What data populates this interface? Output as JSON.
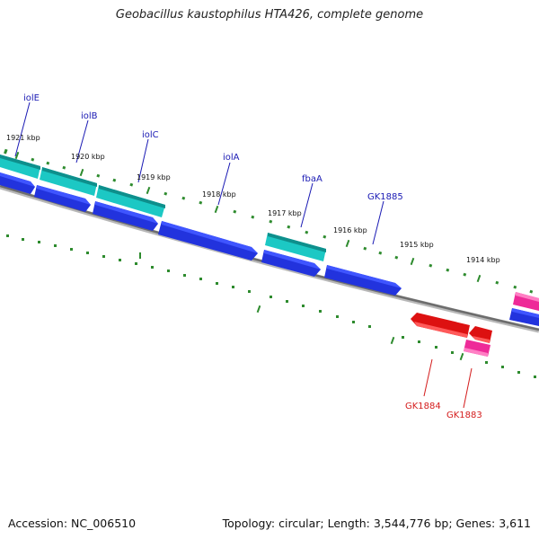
{
  "title": "Geobacillus kaustophilus HTA426, complete genome",
  "footer": {
    "accession": "Accession: NC_006510",
    "summary": "Topology: circular; Length: 3,544,776 bp; Genes: 3,611"
  },
  "colors": {
    "forward_gene": "#2233dd",
    "forward_rna": "#1cc8c4",
    "reverse_gene": "#dd1111",
    "reverse_rna": "#ee2a98",
    "backbone": "#7a7a7a",
    "tick": "#2e8b2e"
  },
  "kbp_labels": [
    "1921 kbp",
    "1920 kbp",
    "1919 kbp",
    "1918 kbp",
    "1917 kbp",
    "1916 kbp",
    "1915 kbp",
    "1914 kbp"
  ],
  "gene_labels": {
    "iolE": "iolE",
    "iolB": "iolB",
    "iolC": "iolC",
    "iolA": "iolA",
    "fbaA": "fbaA",
    "GK1885": "GK1885",
    "GK1884": "GK1884",
    "GK1883": "GK1883"
  }
}
